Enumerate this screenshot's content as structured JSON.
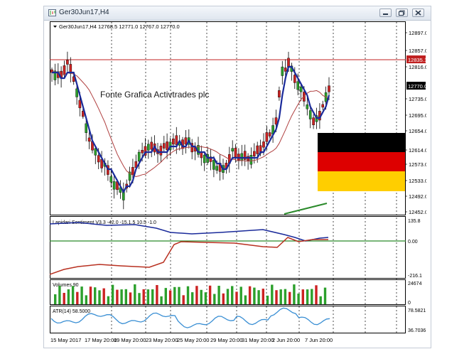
{
  "window": {
    "title": "Ger30Jun17,H4",
    "buttons": [
      "minimize",
      "restore",
      "close"
    ]
  },
  "main_panel": {
    "header": "Ger30Jun17,H4  12768.5 12771.0 12767.0 12770.0",
    "watermark": "Fonte Grafica Activtrades plc",
    "price_labels": [
      "12897.0",
      "12857.0",
      "12835.1",
      "12816.0",
      "12770.0",
      "12735.0",
      "12695.0",
      "12654.0",
      "12614.0",
      "12573.0",
      "12533.0",
      "12492.0",
      "12452.0"
    ],
    "current_price": "12770.0",
    "line_price": "12835.1",
    "flag_colors": [
      "#000000",
      "#dd0000",
      "#ffce00"
    ]
  },
  "sentiment_panel": {
    "header": "Lapidari Sentiment V3.3 -42.0 -15.1.5 10.5 -1.0",
    "scale": [
      "135.8",
      "0.00",
      "-216.1"
    ]
  },
  "volumes_panel": {
    "header": "Volumes 90",
    "scale": [
      "24674",
      "0"
    ]
  },
  "atr_panel": {
    "header": "ATR(14) 58.5000",
    "scale": [
      "78.5821",
      "36.7036"
    ]
  },
  "x_axis": {
    "labels": [
      "15 May 2017",
      "17 May 20:00",
      "19 May 20:00",
      "23 May 20:00",
      "25 May 20:00",
      "29 May 20:00",
      "31 May 20:00",
      "2 Jun 20:00",
      "7 Jun 20:00"
    ]
  },
  "colors": {
    "bull": "#2ca02c",
    "bear": "#cc2222",
    "ma_blue": "#1a2a9a",
    "ma_red": "#b04040",
    "sentiment_blue": "#1a2a9a",
    "sentiment_red": "#b83020",
    "zero_line": "#2a8a2a",
    "atr_line": "#3a8fd4",
    "hline": "#c02020",
    "price_box": "#000000"
  }
}
